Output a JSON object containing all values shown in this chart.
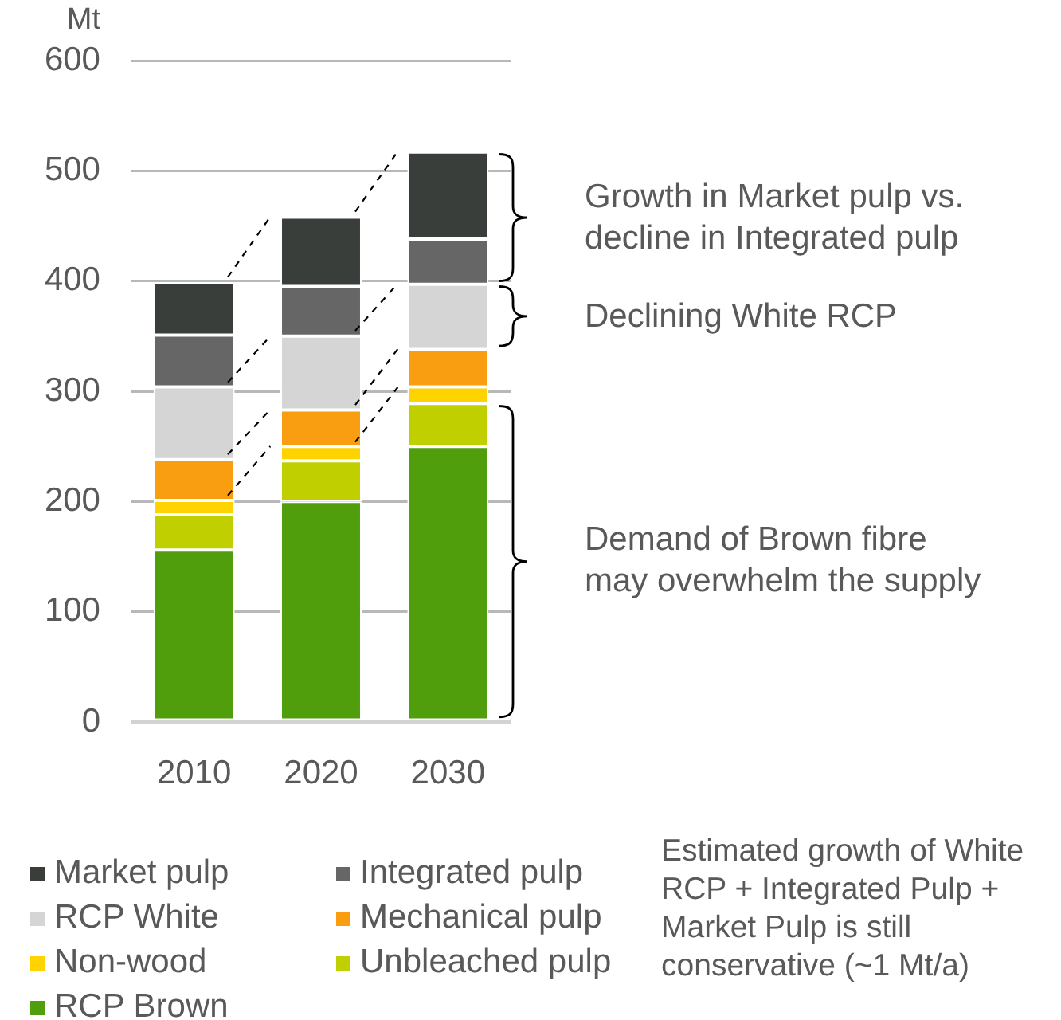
{
  "chart_data": {
    "type": "bar",
    "ylabel": "Mt",
    "categories": [
      "2010",
      "2020",
      "2030"
    ],
    "stacked": true,
    "series": [
      {
        "name": "RCP Brown",
        "color": "#509e0c",
        "values": [
          156,
          200,
          250
        ]
      },
      {
        "name": "Unbleached pulp",
        "color": "#bfcf00",
        "values": [
          32,
          37,
          39
        ]
      },
      {
        "name": "Non-wood",
        "color": "#ffd300",
        "values": [
          13,
          13,
          15
        ]
      },
      {
        "name": "Mechanical pulp",
        "color": "#f99d11",
        "values": [
          37,
          33,
          34
        ]
      },
      {
        "name": "RCP White",
        "color": "#d5d5d5",
        "values": [
          66,
          67,
          59
        ]
      },
      {
        "name": "Integrated pulp",
        "color": "#666666",
        "values": [
          47,
          45,
          41
        ]
      },
      {
        "name": "Market pulp",
        "color": "#3a3e3a",
        "values": [
          48,
          63,
          79
        ]
      }
    ],
    "ylim": [
      0,
      600
    ],
    "yticks": [
      0,
      100,
      200,
      300,
      400,
      500,
      600
    ],
    "grid": "y",
    "legend": "bottom",
    "annotations": [
      "Growth in Market pulp vs.\ndecline in Integrated pulp",
      "Declining White RCP",
      "Demand of Brown fibre\nmay overwhelm the supply",
      "Estimated growth of White\nRCP + Integrated Pulp +\nMarket Pulp is still\nconservative (~1 Mt/a)"
    ]
  }
}
